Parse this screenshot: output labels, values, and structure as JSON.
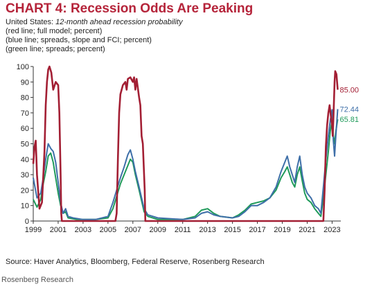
{
  "header": {
    "title": "CHART 4: Recession Odds Are Peaking",
    "country": "United States:",
    "measure": "12-month ahead recession probability",
    "note_red": "(red line; full model; percent)",
    "note_blue": "(blue line; spreads, slope and FCI; percent)",
    "note_green": "(green line; spreads; percent)"
  },
  "footer": {
    "source": "Source: Haver Analytics, Bloomberg, Federal Reserve, Rosenberg Research",
    "brand": "Rosenberg Research"
  },
  "chart_data": {
    "type": "line",
    "xlim": [
      1999,
      2023.7
    ],
    "ylim": [
      0,
      100
    ],
    "x_ticks": [
      1999,
      2001,
      2003,
      2005,
      2007,
      2009,
      2011,
      2013,
      2015,
      2017,
      2019,
      2021,
      2023
    ],
    "y_ticks": [
      0,
      10,
      20,
      30,
      40,
      50,
      60,
      70,
      80,
      90,
      100
    ],
    "grid": false,
    "legend": "none",
    "series": [
      {
        "key": "red",
        "color": "#a31f34",
        "end_label": "85.00",
        "points": [
          [
            1999.0,
            37
          ],
          [
            1999.1,
            48
          ],
          [
            1999.2,
            52
          ],
          [
            1999.3,
            30
          ],
          [
            1999.5,
            8
          ],
          [
            1999.7,
            12
          ],
          [
            1999.9,
            45
          ],
          [
            2000.0,
            75
          ],
          [
            2000.1,
            90
          ],
          [
            2000.2,
            98
          ],
          [
            2000.3,
            100
          ],
          [
            2000.45,
            96
          ],
          [
            2000.6,
            85
          ],
          [
            2000.8,
            90
          ],
          [
            2001.0,
            88
          ],
          [
            2001.1,
            70
          ],
          [
            2001.2,
            30
          ],
          [
            2001.25,
            5
          ],
          [
            2001.3,
            0
          ],
          [
            2005.6,
            0
          ],
          [
            2005.7,
            5
          ],
          [
            2005.8,
            40
          ],
          [
            2005.9,
            70
          ],
          [
            2006.0,
            82
          ],
          [
            2006.2,
            88
          ],
          [
            2006.4,
            90
          ],
          [
            2006.5,
            85
          ],
          [
            2006.6,
            92
          ],
          [
            2006.8,
            93
          ],
          [
            2007.0,
            90
          ],
          [
            2007.1,
            93
          ],
          [
            2007.2,
            85
          ],
          [
            2007.3,
            92
          ],
          [
            2007.5,
            80
          ],
          [
            2007.6,
            75
          ],
          [
            2007.7,
            55
          ],
          [
            2007.8,
            50
          ],
          [
            2007.95,
            20
          ],
          [
            2008.0,
            0
          ],
          [
            2022.3,
            0
          ],
          [
            2022.4,
            20
          ],
          [
            2022.5,
            48
          ],
          [
            2022.6,
            62
          ],
          [
            2022.7,
            70
          ],
          [
            2022.8,
            75
          ],
          [
            2022.9,
            68
          ],
          [
            2023.0,
            62
          ],
          [
            2023.05,
            55
          ],
          [
            2023.1,
            65
          ],
          [
            2023.2,
            90
          ],
          [
            2023.25,
            97
          ],
          [
            2023.35,
            95
          ],
          [
            2023.45,
            85
          ]
        ]
      },
      {
        "key": "blue",
        "color": "#3e6fa8",
        "end_label": "72.44",
        "points": [
          [
            1999.0,
            28
          ],
          [
            1999.3,
            15
          ],
          [
            1999.6,
            18
          ],
          [
            1999.8,
            28
          ],
          [
            2000.0,
            40
          ],
          [
            2000.2,
            50
          ],
          [
            2000.4,
            47
          ],
          [
            2000.6,
            45
          ],
          [
            2000.8,
            38
          ],
          [
            2001.0,
            25
          ],
          [
            2001.2,
            12
          ],
          [
            2001.4,
            5
          ],
          [
            2001.6,
            8
          ],
          [
            2001.8,
            3
          ],
          [
            2002.2,
            2
          ],
          [
            2003.0,
            1
          ],
          [
            2004.0,
            1
          ],
          [
            2005.0,
            3
          ],
          [
            2005.4,
            12
          ],
          [
            2005.7,
            20
          ],
          [
            2006.0,
            28
          ],
          [
            2006.3,
            35
          ],
          [
            2006.6,
            43
          ],
          [
            2006.8,
            46
          ],
          [
            2007.0,
            40
          ],
          [
            2007.2,
            32
          ],
          [
            2007.5,
            22
          ],
          [
            2007.7,
            15
          ],
          [
            2007.9,
            8
          ],
          [
            2008.2,
            4
          ],
          [
            2009.0,
            2
          ],
          [
            2011.0,
            1
          ],
          [
            2012.0,
            2
          ],
          [
            2012.5,
            5
          ],
          [
            2013.0,
            6
          ],
          [
            2013.5,
            4
          ],
          [
            2014.0,
            3
          ],
          [
            2015.0,
            2
          ],
          [
            2015.5,
            3
          ],
          [
            2016.0,
            6
          ],
          [
            2016.5,
            10
          ],
          [
            2017.0,
            10
          ],
          [
            2017.5,
            12
          ],
          [
            2018.0,
            15
          ],
          [
            2018.5,
            22
          ],
          [
            2018.9,
            32
          ],
          [
            2019.2,
            38
          ],
          [
            2019.4,
            42
          ],
          [
            2019.6,
            35
          ],
          [
            2019.8,
            30
          ],
          [
            2020.0,
            25
          ],
          [
            2020.2,
            35
          ],
          [
            2020.4,
            42
          ],
          [
            2020.6,
            30
          ],
          [
            2020.8,
            22
          ],
          [
            2021.0,
            18
          ],
          [
            2021.3,
            15
          ],
          [
            2021.6,
            10
          ],
          [
            2021.9,
            8
          ],
          [
            2022.1,
            5
          ],
          [
            2022.3,
            22
          ],
          [
            2022.5,
            40
          ],
          [
            2022.7,
            55
          ],
          [
            2022.85,
            65
          ],
          [
            2023.0,
            72
          ],
          [
            2023.1,
            52
          ],
          [
            2023.2,
            42
          ],
          [
            2023.3,
            55
          ],
          [
            2023.45,
            72.44
          ]
        ]
      },
      {
        "key": "green",
        "color": "#1f9a5a",
        "end_label": "65.81",
        "points": [
          [
            1999.0,
            14
          ],
          [
            1999.3,
            9
          ],
          [
            1999.6,
            14
          ],
          [
            1999.8,
            24
          ],
          [
            2000.0,
            32
          ],
          [
            2000.2,
            42
          ],
          [
            2000.4,
            44
          ],
          [
            2000.6,
            38
          ],
          [
            2000.8,
            28
          ],
          [
            2001.0,
            18
          ],
          [
            2001.2,
            10
          ],
          [
            2001.4,
            5
          ],
          [
            2001.6,
            6
          ],
          [
            2001.8,
            2
          ],
          [
            2002.5,
            1
          ],
          [
            2004.0,
            1
          ],
          [
            2005.0,
            2
          ],
          [
            2005.4,
            8
          ],
          [
            2005.7,
            16
          ],
          [
            2006.0,
            24
          ],
          [
            2006.3,
            30
          ],
          [
            2006.6,
            36
          ],
          [
            2006.8,
            40
          ],
          [
            2007.0,
            38
          ],
          [
            2007.2,
            30
          ],
          [
            2007.5,
            20
          ],
          [
            2007.7,
            13
          ],
          [
            2007.9,
            6
          ],
          [
            2008.2,
            3
          ],
          [
            2009.0,
            1
          ],
          [
            2011.0,
            1
          ],
          [
            2012.0,
            3
          ],
          [
            2012.5,
            7
          ],
          [
            2013.0,
            8
          ],
          [
            2013.5,
            5
          ],
          [
            2014.0,
            3
          ],
          [
            2015.0,
            2
          ],
          [
            2015.5,
            4
          ],
          [
            2016.0,
            7
          ],
          [
            2016.5,
            11
          ],
          [
            2017.0,
            12
          ],
          [
            2017.5,
            13
          ],
          [
            2018.0,
            15
          ],
          [
            2018.5,
            20
          ],
          [
            2018.9,
            28
          ],
          [
            2019.2,
            32
          ],
          [
            2019.4,
            35
          ],
          [
            2019.6,
            30
          ],
          [
            2019.8,
            25
          ],
          [
            2020.0,
            22
          ],
          [
            2020.2,
            30
          ],
          [
            2020.4,
            35
          ],
          [
            2020.6,
            26
          ],
          [
            2020.8,
            18
          ],
          [
            2021.0,
            14
          ],
          [
            2021.3,
            12
          ],
          [
            2021.6,
            8
          ],
          [
            2021.9,
            5
          ],
          [
            2022.1,
            3
          ],
          [
            2022.3,
            15
          ],
          [
            2022.5,
            30
          ],
          [
            2022.7,
            45
          ],
          [
            2022.85,
            58
          ],
          [
            2023.0,
            65
          ],
          [
            2023.1,
            55
          ],
          [
            2023.2,
            50
          ],
          [
            2023.3,
            58
          ],
          [
            2023.45,
            65.81
          ]
        ]
      }
    ]
  }
}
